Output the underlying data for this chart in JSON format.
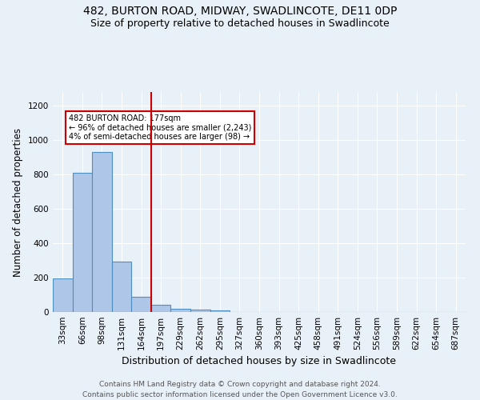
{
  "title": "482, BURTON ROAD, MIDWAY, SWADLINCOTE, DE11 0DP",
  "subtitle": "Size of property relative to detached houses in Swadlincote",
  "xlabel": "Distribution of detached houses by size in Swadlincote",
  "ylabel": "Number of detached properties",
  "footer_line1": "Contains HM Land Registry data © Crown copyright and database right 2024.",
  "footer_line2": "Contains public sector information licensed under the Open Government Licence v3.0.",
  "bin_labels": [
    "33sqm",
    "66sqm",
    "98sqm",
    "131sqm",
    "164sqm",
    "197sqm",
    "229sqm",
    "262sqm",
    "295sqm",
    "327sqm",
    "360sqm",
    "393sqm",
    "425sqm",
    "458sqm",
    "491sqm",
    "524sqm",
    "556sqm",
    "589sqm",
    "622sqm",
    "654sqm",
    "687sqm"
  ],
  "bin_values": [
    195,
    810,
    930,
    295,
    90,
    40,
    18,
    13,
    9,
    0,
    0,
    0,
    0,
    0,
    0,
    0,
    0,
    0,
    0,
    0,
    0
  ],
  "bar_color": "#aec6e8",
  "bar_edge_color": "#4f8fc0",
  "vline_color": "#cc0000",
  "annotation_text": "482 BURTON ROAD: 177sqm\n← 96% of detached houses are smaller (2,243)\n4% of semi-detached houses are larger (98) →",
  "annotation_box_color": "#ffffff",
  "annotation_box_edge": "#cc0000",
  "ylim": [
    0,
    1280
  ],
  "yticks": [
    0,
    200,
    400,
    600,
    800,
    1000,
    1200
  ],
  "background_color": "#e8f0f8",
  "plot_background": "#e8f0f8",
  "grid_color": "#ffffff",
  "title_fontsize": 10,
  "subtitle_fontsize": 9,
  "axis_label_fontsize": 8.5,
  "tick_fontsize": 7.5,
  "footer_fontsize": 6.5
}
